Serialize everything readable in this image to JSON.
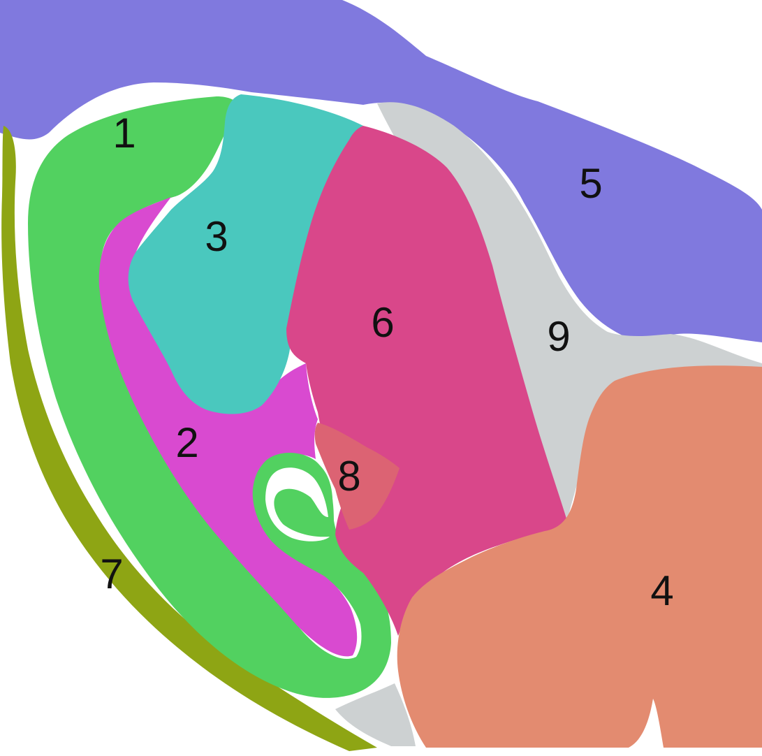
{
  "regions": [
    {
      "id": "1",
      "label": "1",
      "color": "#52d160"
    },
    {
      "id": "2",
      "label": "2",
      "color": "#d94ad0"
    },
    {
      "id": "3",
      "label": "3",
      "color": "#4ac8be"
    },
    {
      "id": "4",
      "label": "4",
      "color": "#e38b70"
    },
    {
      "id": "5",
      "label": "5",
      "color": "#8079de"
    },
    {
      "id": "6",
      "label": "6",
      "color": "#d9478a"
    },
    {
      "id": "7",
      "label": "7",
      "color": "#8ea514"
    },
    {
      "id": "8",
      "label": "8",
      "color": "#dc6373"
    },
    {
      "id": "9",
      "label": "9",
      "color": "#cdd1d2"
    }
  ]
}
